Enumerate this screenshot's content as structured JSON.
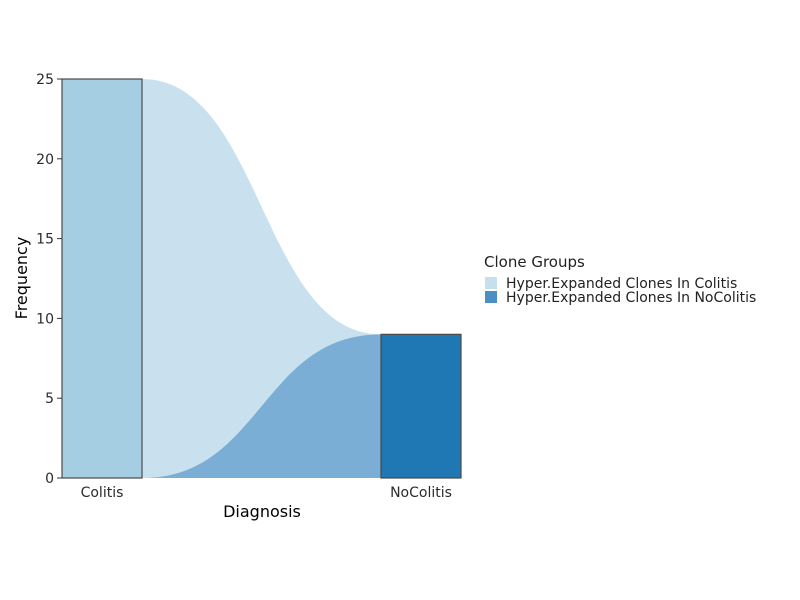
{
  "chart_data": {
    "type": "alluvial",
    "xlabel": "Diagnosis",
    "ylabel": "Frequency",
    "ylim": [
      0,
      25
    ],
    "yticks": [
      0,
      5,
      10,
      15,
      20,
      25
    ],
    "categories": [
      "Colitis",
      "NoColitis"
    ],
    "series": [
      {
        "name": "Hyper.Expanded Clones In Colitis",
        "color": "#a6cee3",
        "flow_color": "#c9e1ee",
        "values": [
          25,
          0
        ]
      },
      {
        "name": "Hyper.Expanded Clones In NoColitis",
        "color": "#1f78b4",
        "flow_color": "#7baed4",
        "values": [
          0,
          9
        ]
      }
    ],
    "legend": {
      "title": "Clone Groups",
      "position": "right",
      "swatch_colors": [
        "#c6dfed",
        "#4a90c4"
      ]
    },
    "grid": false
  }
}
